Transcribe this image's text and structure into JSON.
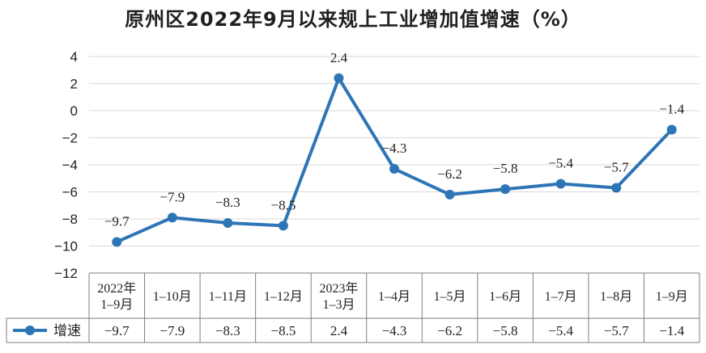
{
  "title": "原州区2022年9月以来规上工业增加值增速（%）",
  "colors": {
    "series": "#2e75b6",
    "grid": "#d9d9d9",
    "table_border": "#7f7f7f",
    "text": "#231f20"
  },
  "chart_data": {
    "type": "line",
    "title": "原州区2022年9月以来规上工业增加值增速（%）",
    "categories": [
      [
        "2022年",
        "1–9月"
      ],
      [
        "1–10月"
      ],
      [
        "1–11月"
      ],
      [
        "1–12月"
      ],
      [
        "2023年",
        "1–3月"
      ],
      [
        "1–4月"
      ],
      [
        "1–5月"
      ],
      [
        "1–6月"
      ],
      [
        "1–7月"
      ],
      [
        "1–8月"
      ],
      [
        "1–9月"
      ]
    ],
    "series": [
      {
        "name": "增速",
        "values": [
          -9.7,
          -7.9,
          -8.3,
          -8.5,
          2.4,
          -4.3,
          -6.2,
          -5.8,
          -5.4,
          -5.7,
          -1.4
        ],
        "labels": [
          "−9.7",
          "−7.9",
          "−8.3",
          "−8.5",
          "2.4",
          "−4.3",
          "−6.2",
          "−5.8",
          "−5.4",
          "−5.7",
          "−1.4"
        ]
      }
    ],
    "ylim": [
      -12,
      4
    ],
    "yticks": [
      4,
      2,
      0,
      -2,
      -4,
      -6,
      -8,
      -10,
      -12
    ],
    "ytick_labels": [
      "4",
      "2",
      "0",
      "−2",
      "−4",
      "−6",
      "−8",
      "−10",
      "−12"
    ],
    "grid": true,
    "legend": "data-table-left",
    "data_table": true
  }
}
